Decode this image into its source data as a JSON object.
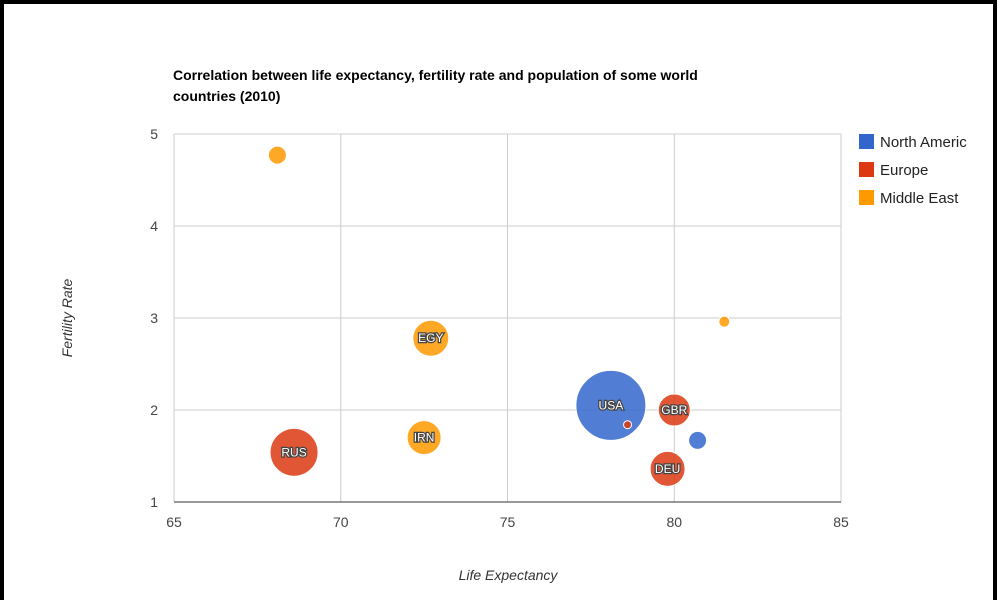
{
  "chart_data": {
    "type": "bubble",
    "title_lines": [
      "Correlation between life expectancy, fertility rate and population of some world",
      "countries (2010)"
    ],
    "xlabel": "Life Expectancy",
    "ylabel": "Fertility Rate",
    "xlim": [
      65,
      85
    ],
    "ylim": [
      1,
      5
    ],
    "x_ticks": [
      65,
      70,
      75,
      80,
      85
    ],
    "y_ticks": [
      1,
      2,
      3,
      4,
      5
    ],
    "grid": true,
    "legend_position": "right",
    "series": [
      {
        "name": "North Americ",
        "color": "#3366cc"
      },
      {
        "name": "Europe",
        "color": "#dc3912"
      },
      {
        "name": "Middle East",
        "color": "#ff9900"
      }
    ],
    "points": [
      {
        "label": "",
        "series": "Middle East",
        "x": 68.1,
        "y": 4.77,
        "size": 18
      },
      {
        "label": "EGY",
        "series": "Middle East",
        "x": 72.7,
        "y": 2.78,
        "size": 36
      },
      {
        "label": "IRN",
        "series": "Middle East",
        "x": 72.5,
        "y": 1.7,
        "size": 34
      },
      {
        "label": "RUS",
        "series": "Europe",
        "x": 68.6,
        "y": 1.54,
        "size": 48
      },
      {
        "label": "USA",
        "series": "North Americ",
        "x": 78.1,
        "y": 2.05,
        "size": 70
      },
      {
        "label": "",
        "series": "Europe",
        "x": 78.6,
        "y": 1.84,
        "size": 8
      },
      {
        "label": "GBR",
        "series": "Europe",
        "x": 80.0,
        "y": 2.0,
        "size": 32
      },
      {
        "label": "DEU",
        "series": "Europe",
        "x": 79.8,
        "y": 1.36,
        "size": 35
      },
      {
        "label": "",
        "series": "North Americ",
        "x": 80.7,
        "y": 1.67,
        "size": 18
      },
      {
        "label": "",
        "series": "Middle East",
        "x": 81.5,
        "y": 2.96,
        "size": 11
      }
    ]
  }
}
